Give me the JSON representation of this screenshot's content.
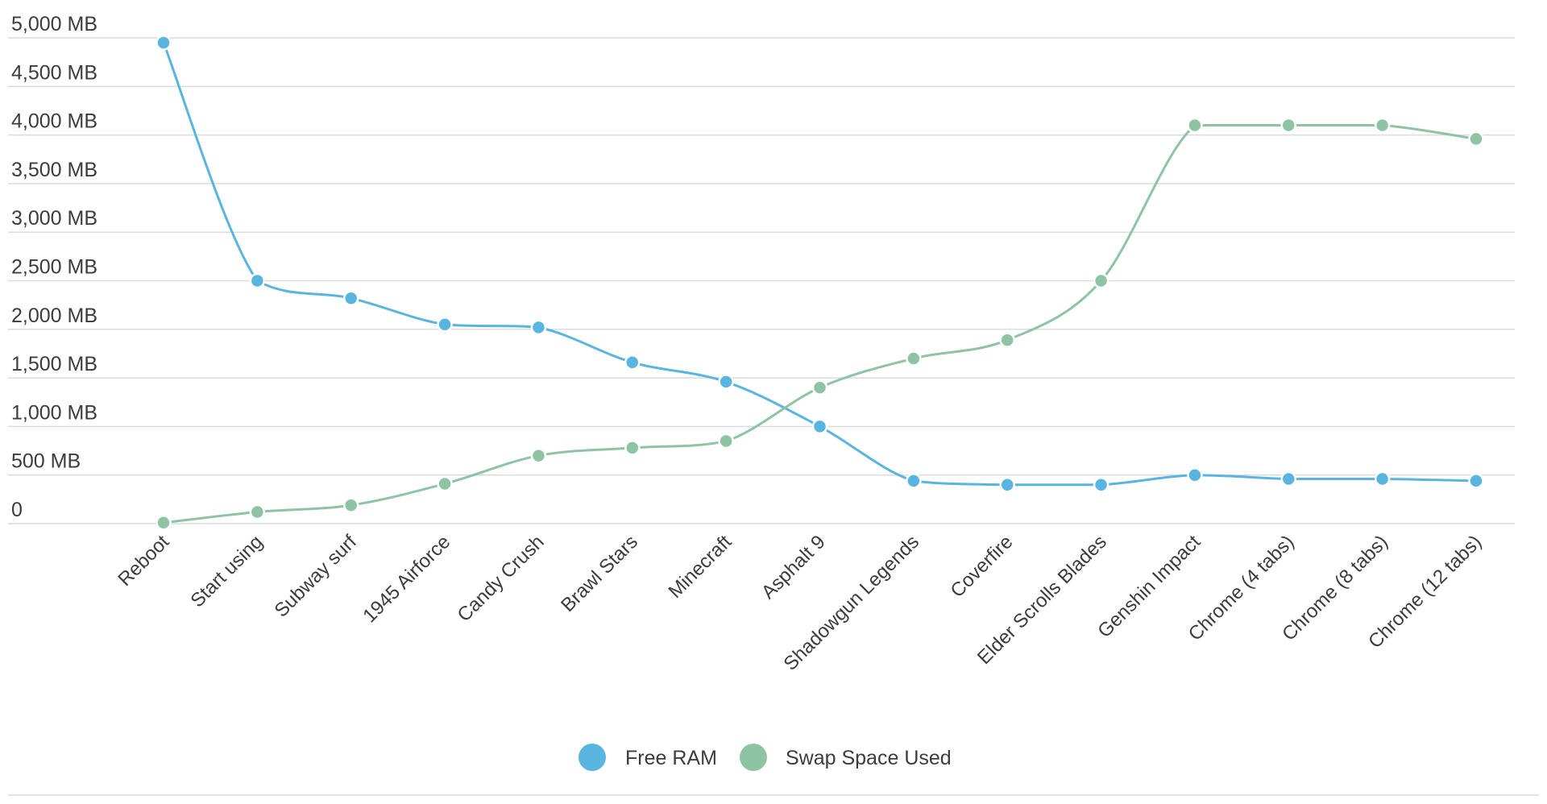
{
  "chart_data": {
    "type": "line",
    "title": "",
    "xlabel": "",
    "ylabel": "",
    "categories": [
      "Reboot",
      "Start using",
      "Subway surf",
      "1945 Airforce",
      "Candy Crush",
      "Brawl Stars",
      "Minecraft",
      "Asphalt 9",
      "Shadowgun Legends",
      "Coverfire",
      "Elder Scrolls Blades",
      "Genshin Impact",
      "Chrome (4 tabs)",
      "Chrome (8 tabs)",
      "Chrome (12 tabs)"
    ],
    "y_ticks": [
      "0",
      "500 MB",
      "1,000 MB",
      "1,500 MB",
      "2,000 MB",
      "2,500 MB",
      "3,000 MB",
      "3,500 MB",
      "4,000 MB",
      "4,500 MB",
      "5,000 MB"
    ],
    "ylim": [
      0,
      5000
    ],
    "grid": true,
    "legend_position": "bottom-center",
    "series": [
      {
        "name": "Free RAM",
        "color": "#5ab4e0",
        "values": [
          4950,
          2500,
          2320,
          2050,
          2020,
          1660,
          1460,
          1000,
          440,
          400,
          400,
          500,
          460,
          460,
          440
        ]
      },
      {
        "name": "Swap Space Used",
        "color": "#8ec4a4",
        "values": [
          10,
          120,
          190,
          410,
          700,
          780,
          850,
          1400,
          1700,
          1890,
          2500,
          4100,
          4100,
          4100,
          3960
        ]
      }
    ]
  }
}
